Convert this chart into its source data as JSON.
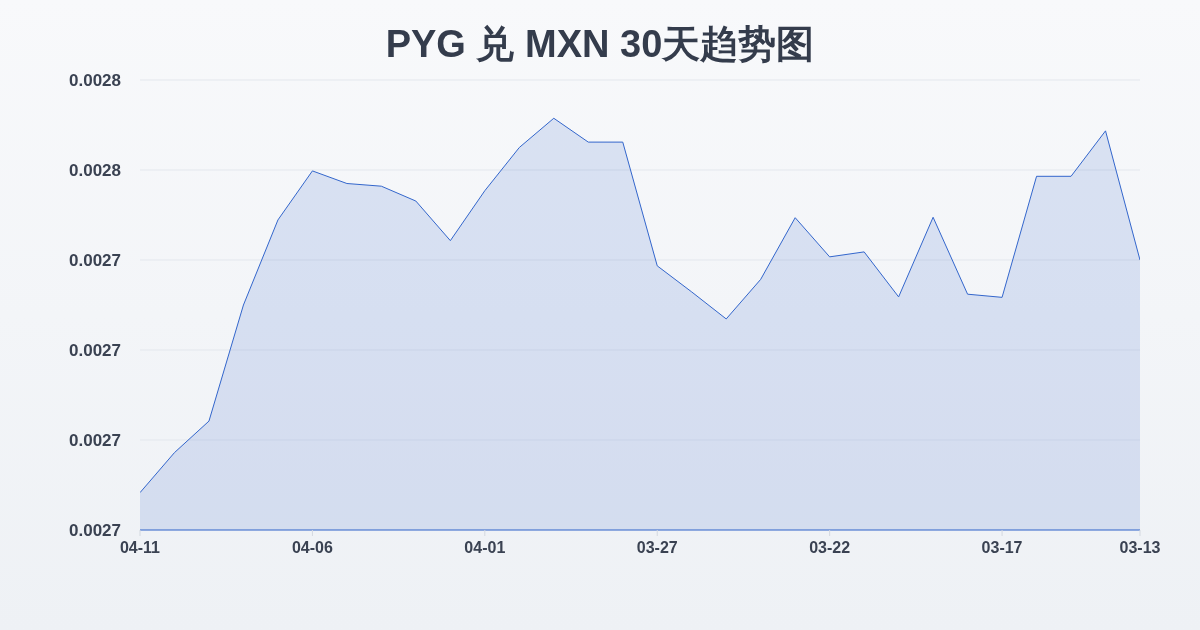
{
  "chart_data": {
    "type": "area",
    "title": "PYG 兑 MXN 30天趋势图",
    "categories": [
      "04-11",
      null,
      null,
      null,
      null,
      "04-06",
      null,
      null,
      null,
      null,
      "04-01",
      null,
      null,
      null,
      null,
      "03-27",
      null,
      null,
      null,
      null,
      "03-22",
      null,
      null,
      null,
      null,
      "03-17",
      null,
      null,
      null,
      "03-13"
    ],
    "values": [
      0.0026883,
      0.0026972,
      0.0027042,
      0.00273,
      0.0027489,
      0.0027598,
      0.002757,
      0.0027564,
      0.0027531,
      0.0027443,
      0.0027554,
      0.002765,
      0.0027715,
      0.0027662,
      0.0027662,
      0.0027387,
      0.0027329,
      0.0027269,
      0.0027357,
      0.0027494,
      0.0027407,
      0.0027418,
      0.0027318,
      0.0027495,
      0.0027324,
      0.0027317,
      0.0027586,
      0.0027586,
      0.0027687,
      0.00274
    ],
    "color": "#3366cc",
    "ylim": [
      0.00268,
      0.00278
    ],
    "yticks": [
      {
        "value": 0.00268,
        "label": "0.0027"
      },
      {
        "value": 0.0027,
        "label": "0.0027"
      },
      {
        "value": 0.00272,
        "label": "0.0027"
      },
      {
        "value": 0.00274,
        "label": "0.0027"
      },
      {
        "value": 0.00276,
        "label": "0.0028"
      },
      {
        "value": 0.00278,
        "label": "0.0028"
      }
    ],
    "grid": "y"
  }
}
